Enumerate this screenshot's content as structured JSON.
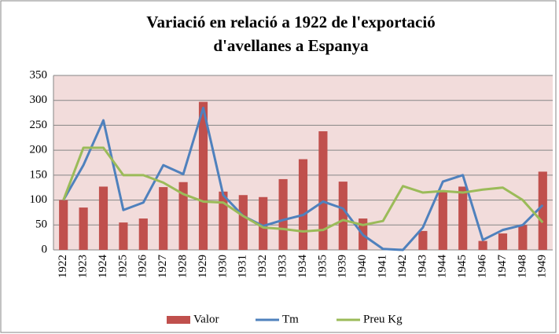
{
  "chart_data": {
    "type": "bar-line",
    "title": [
      "Variació en relació a 1922 de l'exportació",
      "d'avellanes a Espanya"
    ],
    "categories": [
      "1922",
      "1923",
      "1924",
      "1925",
      "1926",
      "1927",
      "1928",
      "1929",
      "1930",
      "1931",
      "1932",
      "1933",
      "1934",
      "1935",
      "1939",
      "1940",
      "1941",
      "1942",
      "1943",
      "1944",
      "1945",
      "1946",
      "1947",
      "1948",
      "1949"
    ],
    "series": [
      {
        "name": "Valor",
        "type": "bar",
        "color": "#c0504d",
        "values": [
          100,
          85,
          127,
          55,
          63,
          126,
          136,
          297,
          117,
          110,
          106,
          142,
          182,
          238,
          137,
          63,
          0,
          0,
          38,
          117,
          127,
          18,
          33,
          50,
          157
        ]
      },
      {
        "name": "Tm",
        "type": "line",
        "color": "#4f81bd",
        "values": [
          100,
          170,
          260,
          80,
          95,
          170,
          152,
          285,
          110,
          68,
          48,
          60,
          70,
          97,
          83,
          30,
          2,
          0,
          45,
          137,
          150,
          20,
          40,
          50,
          90
        ]
      },
      {
        "name": "Preu Kg",
        "type": "line",
        "color": "#9bbb59",
        "values": [
          100,
          205,
          205,
          150,
          150,
          135,
          112,
          97,
          95,
          68,
          45,
          42,
          37,
          40,
          60,
          50,
          58,
          128,
          115,
          118,
          115,
          121,
          125,
          100,
          55
        ]
      }
    ],
    "ylim": [
      0,
      350
    ],
    "yticks": [
      0,
      50,
      100,
      150,
      200,
      250,
      300,
      350
    ],
    "grid": true,
    "legend": "bottom"
  }
}
